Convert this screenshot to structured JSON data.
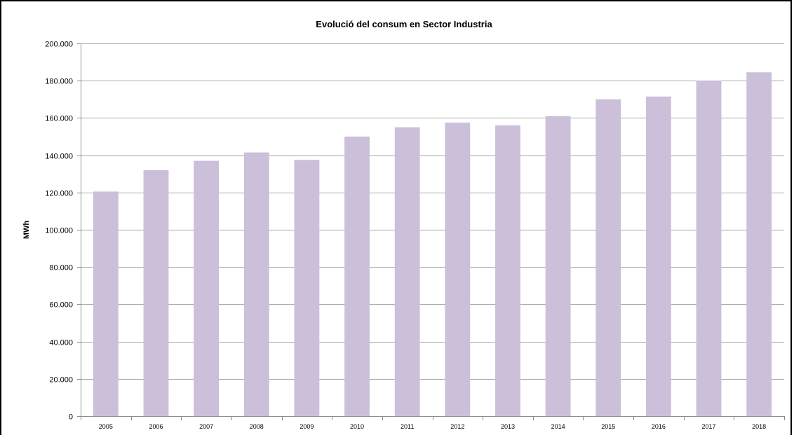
{
  "chart_data": {
    "type": "bar",
    "title": "Evolució del consum en Sector Industria",
    "xlabel": "",
    "ylabel": "MWh",
    "categories": [
      "2005",
      "2006",
      "2007",
      "2008",
      "2009",
      "2010",
      "2011",
      "2012",
      "2013",
      "2014",
      "2015",
      "2016",
      "2017",
      "2018"
    ],
    "values": [
      120500,
      132000,
      137000,
      141500,
      137500,
      150000,
      155000,
      157500,
      156000,
      161000,
      170000,
      171500,
      180000,
      184500
    ],
    "ylim": [
      0,
      200000
    ],
    "y_ticks": [
      0,
      20000,
      40000,
      60000,
      80000,
      100000,
      120000,
      140000,
      160000,
      180000,
      200000
    ],
    "y_tick_labels": [
      "0",
      "20.000",
      "40.000",
      "60.000",
      "80.000",
      "100.000",
      "120.000",
      "140.000",
      "160.000",
      "180.000",
      "200.000"
    ],
    "grid": true,
    "legend": "none",
    "colors": {
      "bar": "#cbbfda",
      "grid": "#a6a6a6",
      "axis": "#8c8c8c"
    }
  }
}
